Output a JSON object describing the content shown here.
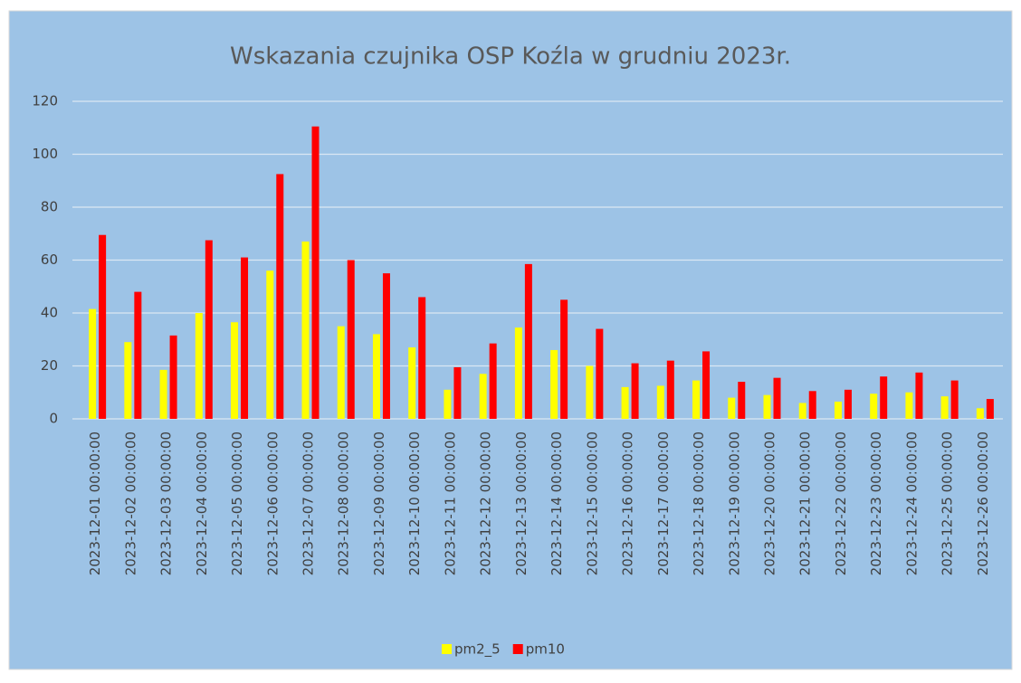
{
  "chart_data": {
    "type": "bar",
    "title": "Wskazania czujnika OSP Koźla w grudniu 2023r.",
    "categories": [
      "2023-12-01 00:00:00",
      "2023-12-02 00:00:00",
      "2023-12-03 00:00:00",
      "2023-12-04 00:00:00",
      "2023-12-05 00:00:00",
      "2023-12-06 00:00:00",
      "2023-12-07 00:00:00",
      "2023-12-08 00:00:00",
      "2023-12-09 00:00:00",
      "2023-12-10 00:00:00",
      "2023-12-11 00:00:00",
      "2023-12-12 00:00:00",
      "2023-12-13 00:00:00",
      "2023-12-14 00:00:00",
      "2023-12-15 00:00:00",
      "2023-12-16 00:00:00",
      "2023-12-17 00:00:00",
      "2023-12-18 00:00:00",
      "2023-12-19 00:00:00",
      "2023-12-20 00:00:00",
      "2023-12-21 00:00:00",
      "2023-12-22 00:00:00",
      "2023-12-23 00:00:00",
      "2023-12-24 00:00:00",
      "2023-12-25 00:00:00",
      "2023-12-26 00:00:00"
    ],
    "series": [
      {
        "name": "pm2_5",
        "color": "#ffff00",
        "values": [
          41.5,
          29,
          18.5,
          40,
          36.5,
          56,
          67,
          35,
          32,
          27,
          11,
          17,
          34.5,
          26,
          20,
          12,
          12.5,
          14.5,
          8,
          9,
          6,
          6.5,
          9.5,
          10,
          8.5,
          4
        ]
      },
      {
        "name": "pm10",
        "color": "#ff0000",
        "values": [
          69.5,
          48,
          31.5,
          67.5,
          61,
          92.5,
          110.5,
          60,
          55,
          46,
          19.5,
          28.5,
          58.5,
          45,
          34,
          21,
          22,
          25.5,
          14,
          15.5,
          10.5,
          11,
          16,
          17.5,
          14.5,
          7.5
        ]
      }
    ],
    "ylim": [
      0,
      120
    ],
    "yticks": [
      0,
      20,
      40,
      60,
      80,
      100,
      120
    ],
    "grid": true,
    "legend": "bottom"
  }
}
